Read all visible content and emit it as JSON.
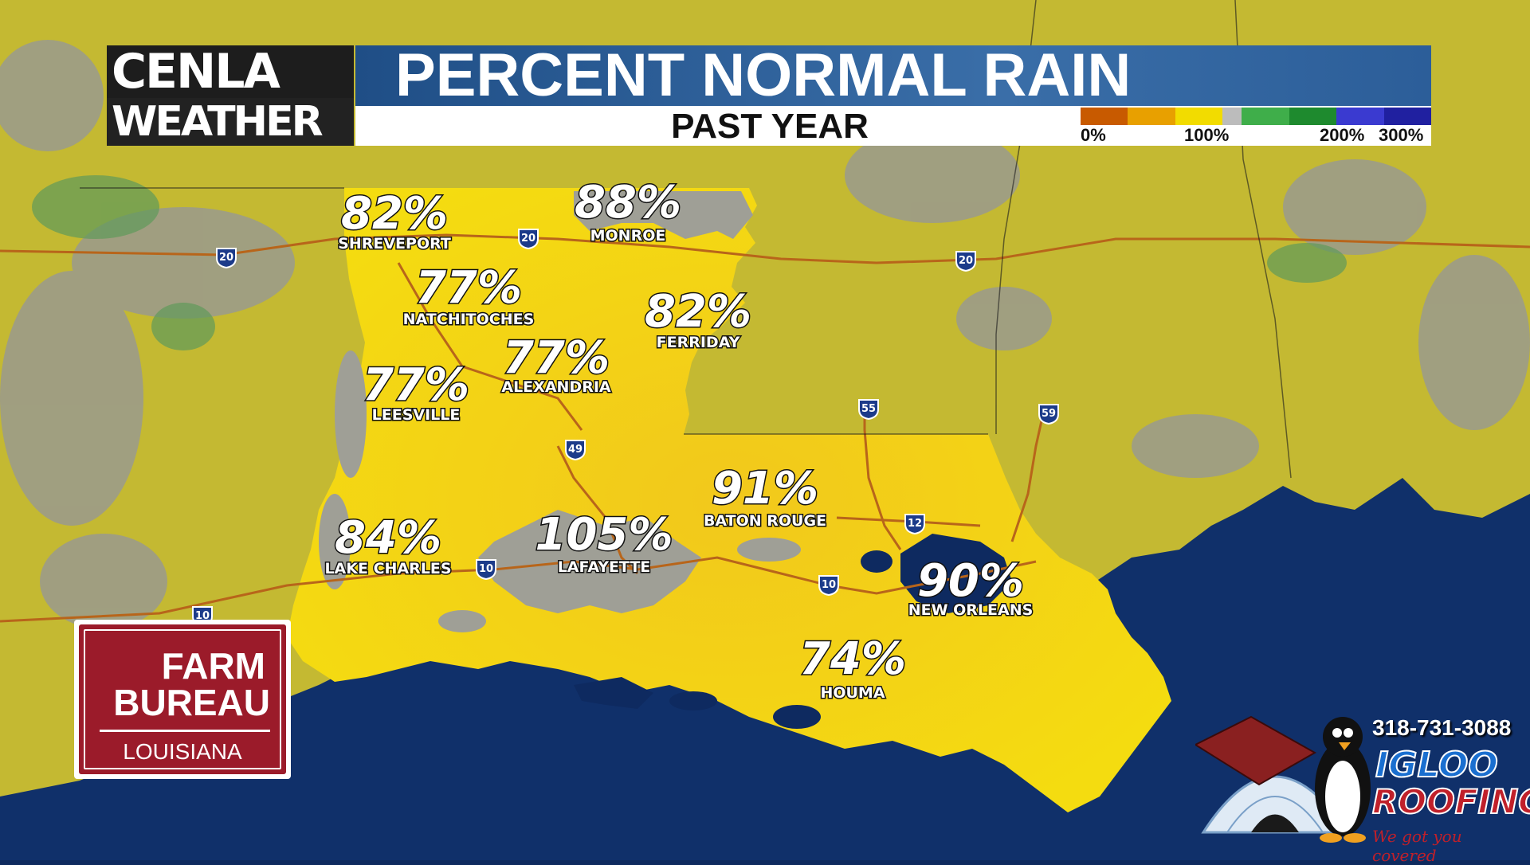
{
  "header": {
    "logo_line1": "CENLA",
    "logo_line2": "WEATHER",
    "title": "PERCENT NORMAL RAIN",
    "subtitle": "PAST YEAR"
  },
  "legend": {
    "labels": [
      "0%",
      "100%",
      "200%",
      "300%"
    ],
    "colors": [
      "#c85a00",
      "#e8a000",
      "#f2dc00",
      "#bcbcbc",
      "#3fae4a",
      "#1e8a2e",
      "#3a3ad0",
      "#2020a0"
    ]
  },
  "map": {
    "land_color": "#c9bd2e",
    "state_fill": "#f0d21a",
    "water_color": "#10306a",
    "highways": [
      "20",
      "20",
      "20",
      "49",
      "55",
      "59",
      "12",
      "10",
      "10",
      "10"
    ]
  },
  "cities": [
    {
      "name": "SHREVEPORT",
      "pct": "82%"
    },
    {
      "name": "MONROE",
      "pct": "88%"
    },
    {
      "name": "NATCHITOCHES",
      "pct": "77%"
    },
    {
      "name": "FERRIDAY",
      "pct": "82%"
    },
    {
      "name": "ALEXANDRIA",
      "pct": "77%"
    },
    {
      "name": "LEESVILLE",
      "pct": "77%"
    },
    {
      "name": "BATON ROUGE",
      "pct": "91%"
    },
    {
      "name": "LAKE CHARLES",
      "pct": "84%"
    },
    {
      "name": "LAFAYETTE",
      "pct": "105%"
    },
    {
      "name": "NEW ORLEANS",
      "pct": "90%"
    },
    {
      "name": "HOUMA",
      "pct": "74%"
    }
  ],
  "sponsors": {
    "farm_bureau": {
      "line1": "FARM",
      "line2": "BUREAU",
      "line3": "LOUISIANA"
    },
    "igloo": {
      "phone": "318-731-3088",
      "word1": "IGLOO",
      "word2": "ROOFING",
      "tagline": "We got you covered"
    }
  }
}
